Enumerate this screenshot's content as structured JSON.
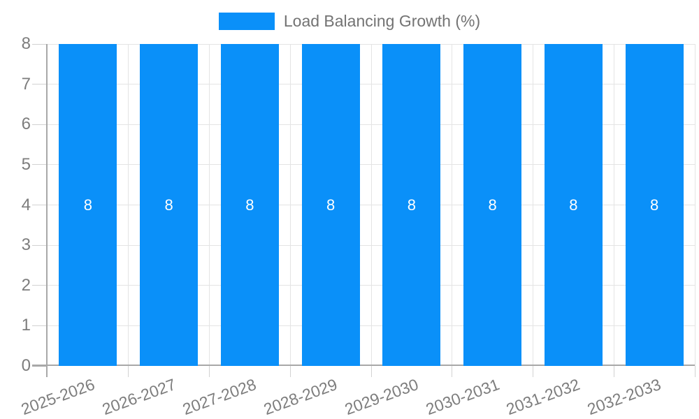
{
  "legend": {
    "label": "Load Balancing Growth (%)",
    "position": "top"
  },
  "chart_data": {
    "type": "bar",
    "title": "Load Balancing Growth (%)",
    "categories": [
      "2025-2026",
      "2026-2027",
      "2027-2028",
      "2028-2029",
      "2029-2030",
      "2030-2031",
      "2031-2032",
      "2032-2033"
    ],
    "series": [
      {
        "name": "Load Balancing Growth (%)",
        "values": [
          8,
          8,
          8,
          8,
          8,
          8,
          8,
          8
        ]
      }
    ],
    "value_labels": [
      "8",
      "8",
      "8",
      "8",
      "8",
      "8",
      "8",
      "8"
    ],
    "xlabel": "",
    "ylabel": "",
    "ylim": [
      0,
      8
    ],
    "yticks": [
      0,
      1,
      2,
      3,
      4,
      5,
      6,
      7,
      8
    ],
    "grid": true,
    "x_label_rotation_deg": -20,
    "legend_position": "top"
  },
  "colors": {
    "bar": "#0a90f9",
    "grid_line": "#e4e4e4",
    "tick_line": "#d2d2d2",
    "axis_line": "#a8a8a8",
    "axis_text": "#7d7d7d",
    "legend_text": "#737373",
    "value_text": "#ffffff",
    "background": "#ffffff"
  }
}
